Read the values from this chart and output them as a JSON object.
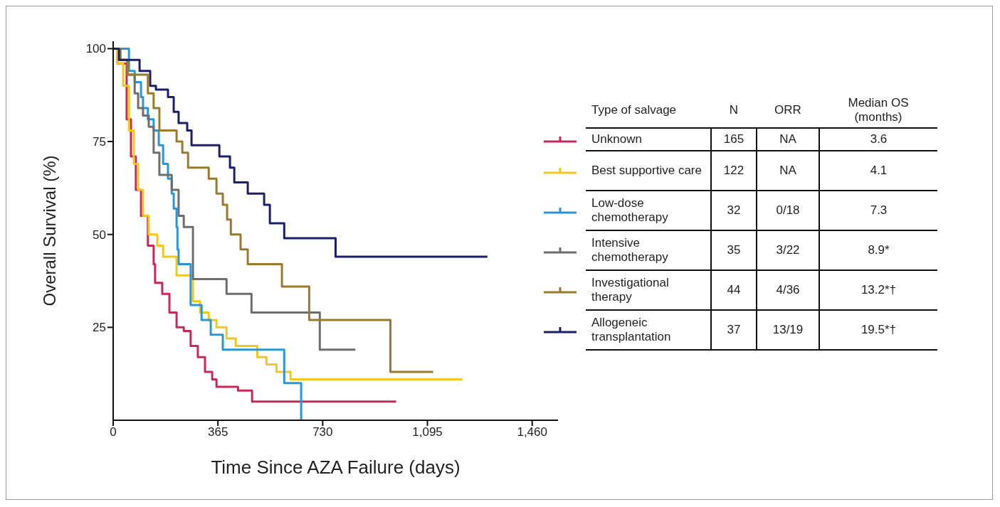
{
  "chart_data": {
    "type": "step",
    "xlabel": "Time Since AZA Failure (days)",
    "ylabel": "Overall Survival (%)",
    "legend_title": "Type of salvage",
    "legend": "right",
    "grid": false,
    "marker": "none",
    "line_style": "solid",
    "xlim": [
      0,
      1550
    ],
    "xticks": [
      0,
      365,
      730,
      {
        "value": 1095,
        "label": "1,095"
      },
      {
        "value": 1460,
        "label": "1,460"
      }
    ],
    "ylim": [
      0,
      102
    ],
    "yticks": [
      25,
      50,
      75,
      100
    ],
    "series": [
      {
        "name": "Unknown",
        "color": "#c8285a",
        "x": [
          0,
          15,
          47,
          62,
          79,
          97,
          121,
          141,
          146,
          171,
          196,
          221,
          246,
          270,
          295,
          320,
          345,
          360,
          435,
          484,
          986
        ],
        "values": [
          100,
          96,
          81,
          71,
          62,
          55,
          47,
          42,
          37,
          34,
          29,
          25,
          24,
          20,
          17,
          13,
          11,
          9,
          8,
          5,
          5
        ]
      },
      {
        "name": "Best supportive care",
        "color": "#f2c81e",
        "x": [
          0,
          15,
          35,
          55,
          72,
          87,
          104,
          124,
          154,
          174,
          221,
          278,
          303,
          333,
          360,
          395,
          427,
          502,
          534,
          569,
          618,
          1217
        ],
        "values": [
          100,
          96,
          90,
          78,
          69,
          62,
          55,
          50,
          47,
          44,
          39,
          32,
          29,
          27,
          25,
          22,
          20,
          17,
          15,
          13,
          11,
          11
        ]
      },
      {
        "name": "Low-dose chemotherapy",
        "color": "#2b95d6",
        "x": [
          0,
          55,
          75,
          97,
          104,
          121,
          141,
          159,
          174,
          191,
          204,
          211,
          221,
          224,
          228,
          236,
          270,
          308,
          340,
          382,
          596,
          655
        ],
        "values": [
          100,
          94,
          91,
          87,
          84,
          81,
          78,
          74,
          69,
          65,
          61,
          57,
          52,
          46,
          42,
          42,
          31,
          27,
          23,
          19,
          10,
          0
        ]
      },
      {
        "name": "Intensive chemotherapy",
        "color": "#6e6e6e",
        "x": [
          0,
          25,
          50,
          75,
          87,
          104,
          124,
          141,
          161,
          204,
          228,
          246,
          278,
          395,
          482,
          720,
          844
        ],
        "values": [
          100,
          97,
          93,
          88,
          84,
          82,
          79,
          72,
          66,
          62,
          55,
          52,
          38,
          34,
          29,
          19,
          19
        ]
      },
      {
        "name": "Investigational therapy",
        "color": "#9a7b2c",
        "x": [
          0,
          25,
          50,
          121,
          141,
          161,
          221,
          241,
          261,
          333,
          360,
          382,
          397,
          410,
          444,
          469,
          588,
          683,
          966,
          1115
        ],
        "values": [
          100,
          97,
          93,
          88,
          84,
          78,
          75,
          72,
          68,
          65,
          61,
          58,
          54,
          50,
          46,
          42,
          36,
          27,
          13,
          13
        ]
      },
      {
        "name": "Allogeneic transplantation",
        "color": "#1c1f6e",
        "x": [
          0,
          20,
          92,
          129,
          149,
          191,
          211,
          228,
          258,
          273,
          370,
          407,
          422,
          469,
          526,
          546,
          596,
          775,
          1304
        ],
        "values": [
          100,
          97,
          94,
          90,
          89,
          87,
          83,
          80,
          78,
          74,
          71,
          68,
          64,
          61,
          58,
          53,
          49,
          44,
          44
        ]
      }
    ],
    "annotations": [
      "N",
      "ORR",
      "Median OS (months)",
      "165",
      "NA",
      "3.6",
      "122",
      "NA",
      "4.1",
      "32",
      "0/18",
      "7.3",
      "35",
      "3/22",
      "8.9*",
      "44",
      "4/36",
      "13.2*†",
      "37",
      "13/19",
      "19.5*†"
    ]
  }
}
